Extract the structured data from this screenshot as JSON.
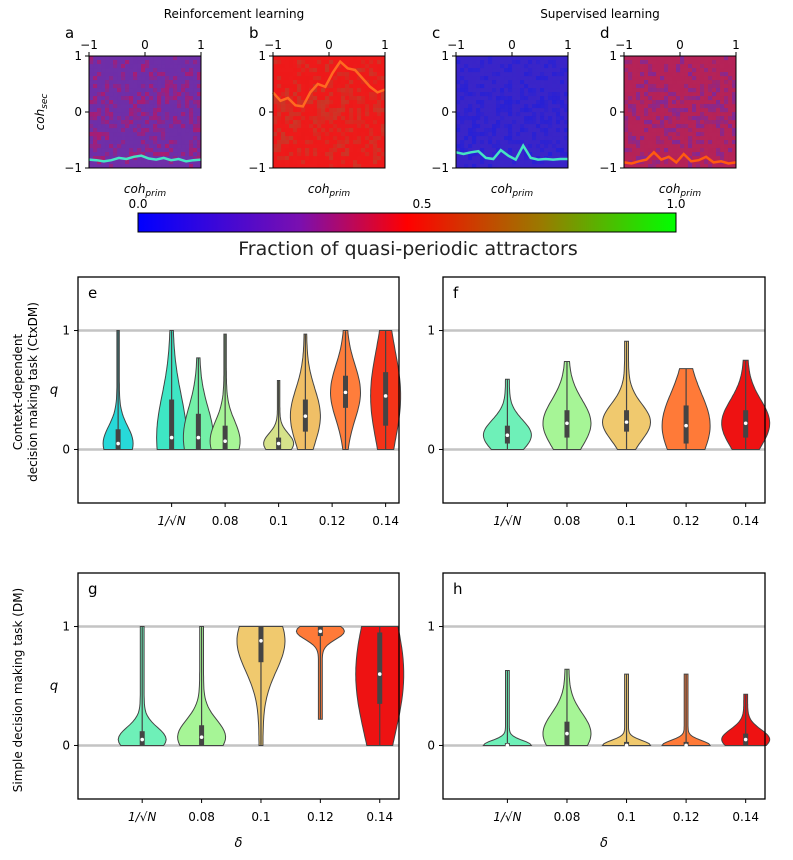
{
  "headings": {
    "reinforcement": "Reinforcement learning",
    "supervised": "Supervised learning"
  },
  "heatmap_panels": [
    {
      "letter": "a",
      "xlabel": "coh",
      "xsub": "prim",
      "ylabel": "coh",
      "ysub": "sec",
      "base": "#6f2fa8",
      "center": "#b11a6a",
      "trace": "#45e5c2",
      "trace_y": [
        -0.85,
        -0.86,
        -0.88,
        -0.86,
        -0.82,
        -0.84,
        -0.8,
        -0.78,
        -0.83,
        -0.85,
        -0.82,
        -0.86,
        -0.84,
        -0.88,
        -0.86,
        -0.85
      ]
    },
    {
      "letter": "b",
      "xlabel": "coh",
      "xsub": "prim",
      "ylabel": "",
      "ysub": "",
      "base": "#ee1a1a",
      "center": "#c63b2a",
      "trace": "#ff6a20",
      "trace_y": [
        0.35,
        0.2,
        0.25,
        0.12,
        0.1,
        0.35,
        0.5,
        0.45,
        0.7,
        0.9,
        0.78,
        0.75,
        0.6,
        0.45,
        0.35,
        0.4
      ]
    },
    {
      "letter": "c",
      "xlabel": "coh",
      "xsub": "prim",
      "ylabel": "",
      "ysub": "",
      "base": "#3a25c8",
      "center": "#2420d8",
      "trace": "#45e5c2",
      "trace_y": [
        -0.72,
        -0.75,
        -0.72,
        -0.7,
        -0.82,
        -0.84,
        -0.68,
        -0.78,
        -0.85,
        -0.6,
        -0.82,
        -0.85,
        -0.84,
        -0.85,
        -0.84,
        -0.84
      ]
    },
    {
      "letter": "d",
      "xlabel": "coh",
      "xsub": "prim",
      "ylabel": "",
      "ysub": "",
      "base": "#b52358",
      "center": "#7a2aa0",
      "trace": "#ff5a10",
      "trace_y": [
        -0.9,
        -0.92,
        -0.88,
        -0.85,
        -0.72,
        -0.85,
        -0.8,
        -0.9,
        -0.75,
        -0.88,
        -0.86,
        -0.8,
        -0.9,
        -0.88,
        -0.92,
        -0.9
      ]
    }
  ],
  "heatmap_ticks": {
    "x": [
      "−1",
      "0",
      "1"
    ],
    "y": [
      "1",
      "0",
      "−1"
    ]
  },
  "colorbar": {
    "label": "Fraction of quasi-periodic attractors",
    "ticks": [
      "0.0",
      "0.5",
      "1.0"
    ]
  },
  "violin_common": {
    "ylabel": "q",
    "xlabel": "δ",
    "row_labels": [
      "Context-dependent",
      "decision making task (CtxDM)",
      "Simple decision making task (DM)"
    ],
    "yticks": [
      "1",
      "0"
    ],
    "sqrt_label": "1/√N"
  },
  "chart_data": [
    {
      "type": "violin",
      "panel": "e",
      "ylim": [
        -0.45,
        1.45
      ],
      "hlines": [
        0,
        1
      ],
      "categories": [
        "1/√N",
        "0.08",
        "0.1",
        "0.12",
        "0.14"
      ],
      "series": [
        {
          "x": 0.04,
          "color": "#27d9d9",
          "median": 0.05,
          "q1": 0.0,
          "q3": 0.17,
          "min": 0.0,
          "max": 1.0
        },
        {
          "x": 0.06,
          "color": "#3ee6c4",
          "median": 0.1,
          "q1": 0.0,
          "q3": 0.42,
          "min": 0.0,
          "max": 1.0
        },
        {
          "x": 0.07,
          "color": "#73f0a8",
          "median": 0.1,
          "q1": 0.0,
          "q3": 0.3,
          "min": 0.0,
          "max": 0.77
        },
        {
          "x": 0.08,
          "color": "#a6f596",
          "median": 0.07,
          "q1": 0.0,
          "q3": 0.2,
          "min": 0.0,
          "max": 0.97
        },
        {
          "x": 0.1,
          "color": "#d6e28a",
          "median": 0.05,
          "q1": 0.0,
          "q3": 0.1,
          "min": 0.0,
          "max": 0.58
        },
        {
          "x": 0.11,
          "color": "#f0bf66",
          "median": 0.28,
          "q1": 0.15,
          "q3": 0.42,
          "min": 0.0,
          "max": 0.97
        },
        {
          "x": 0.125,
          "color": "#ff7d3b",
          "median": 0.48,
          "q1": 0.35,
          "q3": 0.62,
          "min": 0.0,
          "max": 1.0
        },
        {
          "x": 0.14,
          "color": "#f53318",
          "median": 0.45,
          "q1": 0.2,
          "q3": 0.65,
          "min": 0.0,
          "max": 1.0
        }
      ]
    },
    {
      "type": "violin",
      "panel": "f",
      "ylim": [
        -0.45,
        1.45
      ],
      "hlines": [
        0,
        1
      ],
      "categories": [
        "1/√N",
        "0.08",
        "0.1",
        "0.12",
        "0.14"
      ],
      "series": [
        {
          "x": 1,
          "color": "#6ef0b8",
          "median": 0.12,
          "q1": 0.05,
          "q3": 0.2,
          "min": 0.0,
          "max": 0.59
        },
        {
          "x": 2,
          "color": "#a6f596",
          "median": 0.22,
          "q1": 0.1,
          "q3": 0.33,
          "min": 0.0,
          "max": 0.74
        },
        {
          "x": 3,
          "color": "#f0c96e",
          "median": 0.23,
          "q1": 0.15,
          "q3": 0.33,
          "min": 0.0,
          "max": 0.91
        },
        {
          "x": 4,
          "color": "#ff7a38",
          "median": 0.2,
          "q1": 0.05,
          "q3": 0.37,
          "min": 0.0,
          "max": 0.68
        },
        {
          "x": 5,
          "color": "#ee1212",
          "median": 0.22,
          "q1": 0.1,
          "q3": 0.33,
          "min": 0.0,
          "max": 0.75
        }
      ]
    },
    {
      "type": "violin",
      "panel": "g",
      "ylim": [
        -0.45,
        1.45
      ],
      "hlines": [
        0,
        1
      ],
      "categories": [
        "1/√N",
        "0.08",
        "0.1",
        "0.12",
        "0.14"
      ],
      "series": [
        {
          "x": 1,
          "color": "#6ef0b8",
          "median": 0.05,
          "q1": 0.0,
          "q3": 0.12,
          "min": 0.0,
          "max": 1.0
        },
        {
          "x": 2,
          "color": "#a6f596",
          "median": 0.07,
          "q1": 0.0,
          "q3": 0.17,
          "min": 0.0,
          "max": 1.0
        },
        {
          "x": 3,
          "color": "#f0c96e",
          "median": 0.88,
          "q1": 0.7,
          "q3": 1.0,
          "min": 0.0,
          "max": 1.0
        },
        {
          "x": 4,
          "color": "#ff7a38",
          "median": 0.96,
          "q1": 0.92,
          "q3": 1.0,
          "min": 0.22,
          "max": 1.0
        },
        {
          "x": 5,
          "color": "#ee1212",
          "median": 0.6,
          "q1": 0.35,
          "q3": 0.95,
          "min": 0.0,
          "max": 1.0
        }
      ]
    },
    {
      "type": "violin",
      "panel": "h",
      "ylim": [
        -0.45,
        1.45
      ],
      "hlines": [
        0,
        1
      ],
      "categories": [
        "1/√N",
        "0.08",
        "0.1",
        "0.12",
        "0.14"
      ],
      "series": [
        {
          "x": 1,
          "color": "#6ef0b8",
          "median": 0.0,
          "q1": 0.0,
          "q3": 0.02,
          "min": 0.0,
          "max": 0.63
        },
        {
          "x": 2,
          "color": "#a6f596",
          "median": 0.1,
          "q1": 0.0,
          "q3": 0.2,
          "min": 0.0,
          "max": 0.64
        },
        {
          "x": 3,
          "color": "#f0c96e",
          "median": 0.0,
          "q1": 0.0,
          "q3": 0.03,
          "min": 0.0,
          "max": 0.6
        },
        {
          "x": 4,
          "color": "#ff7a38",
          "median": 0.0,
          "q1": 0.0,
          "q3": 0.03,
          "min": 0.0,
          "max": 0.6
        },
        {
          "x": 5,
          "color": "#ee1212",
          "median": 0.05,
          "q1": 0.0,
          "q3": 0.1,
          "min": 0.0,
          "max": 0.43
        }
      ]
    }
  ]
}
